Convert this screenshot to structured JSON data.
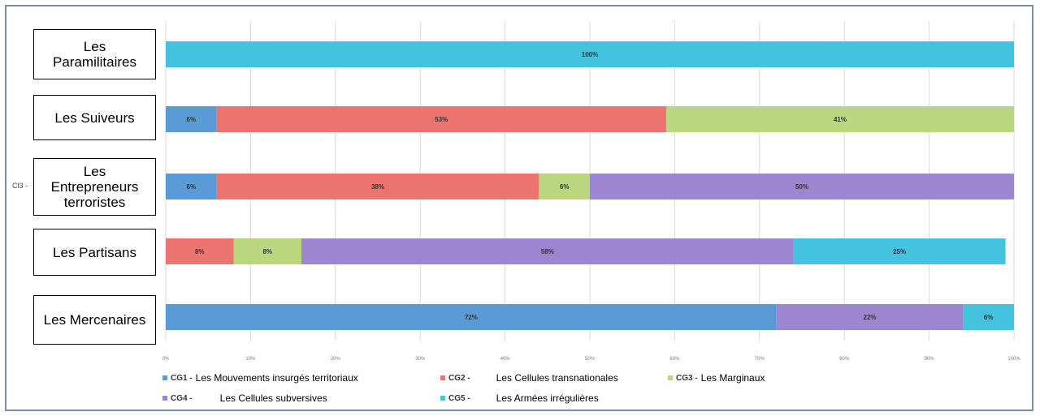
{
  "chart_data": {
    "type": "bar",
    "orientation": "horizontal",
    "stacked": "percent",
    "categories": [
      "Les Paramilitaires",
      "Les Suiveurs",
      "Les Entrepreneurs terroristes",
      "Les Partisans",
      "Les Mercenaires"
    ],
    "category_labels": [
      "Les\nParamilitaires",
      "Les Suiveurs",
      "Les\nEntrepreneurs\nterroristes",
      "Les Partisans",
      "Les Mercenaires"
    ],
    "series": [
      {
        "code": "CG1 -",
        "name": "Les Mouvements insurgés territoriaux",
        "color": "#5b9bd5",
        "values": [
          0,
          6,
          6,
          0,
          72
        ],
        "labels": [
          "",
          "6%",
          "6%",
          "",
          "72%"
        ]
      },
      {
        "code": "CG2 -",
        "name": "Les Cellules transnationales",
        "color": "#ec7470",
        "values": [
          0,
          53,
          38,
          8,
          0
        ],
        "labels": [
          "",
          "53%",
          "38%",
          "8%",
          ""
        ]
      },
      {
        "code": "CG3 -",
        "name": "Les Marginaux",
        "color": "#b9d77e",
        "values": [
          0,
          41,
          6,
          8,
          0
        ],
        "labels": [
          "",
          "41%",
          "6%",
          "8%",
          ""
        ]
      },
      {
        "code": "CG4 -",
        "name": "Les Cellules subversives",
        "color": "#9b86cf",
        "values": [
          0,
          0,
          50,
          58,
          22
        ],
        "labels": [
          "",
          "",
          "50%",
          "58%",
          "22%"
        ]
      },
      {
        "code": "CG5 -",
        "name": "Les Armées irrégulières",
        "color": "#44c3de",
        "values": [
          100,
          0,
          0,
          25,
          6
        ],
        "labels": [
          "100%",
          "",
          "",
          "25%",
          "6%"
        ]
      }
    ],
    "xlim": [
      0,
      100
    ],
    "x_ticks": [
      "0%",
      "10%",
      "20%",
      "30%",
      "40%",
      "50%",
      "60%",
      "70%",
      "80%",
      "90%",
      "100%"
    ],
    "grid": true,
    "legend_position": "bottom",
    "side_label": "Cl3 -"
  }
}
